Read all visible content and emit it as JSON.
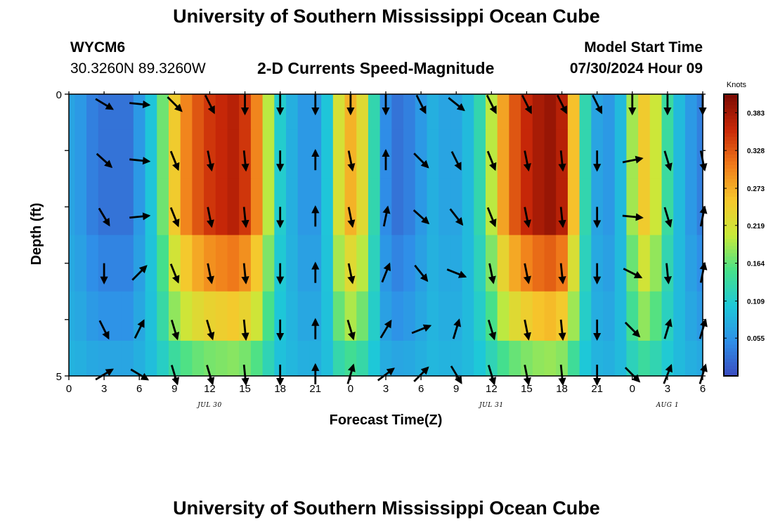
{
  "header": {
    "title": "University of Southern Mississippi Ocean Cube",
    "station": "WYCM6",
    "coords": "30.3260N  89.3260W",
    "subtitle": "2-D Currents Speed-Magnitude",
    "model_start_label": "Model Start Time",
    "model_start_value": "07/30/2024 Hour 09"
  },
  "footer": {
    "title": "University of Southern Mississippi Ocean Cube"
  },
  "colors": {
    "colormap": [
      "#3b4cc0",
      "#2f8fe8",
      "#1ec8d8",
      "#46e08a",
      "#c8ea3a",
      "#f6c72c",
      "#f07a1a",
      "#c82808",
      "#7a0a03"
    ],
    "arrow": "#000000"
  },
  "chart_data": {
    "type": "heatmap",
    "xlabel": "Forecast Time(Z)",
    "ylabel": "Depth (ft)",
    "x_ticks": [
      "0",
      "3",
      "6",
      "9",
      "12",
      "15",
      "18",
      "21",
      "0",
      "3",
      "6",
      "9",
      "12",
      "15",
      "18",
      "21",
      "0",
      "3",
      "6"
    ],
    "x_range_hours": [
      0,
      54
    ],
    "date_labels": [
      {
        "text": "JUL 30",
        "hour": 12
      },
      {
        "text": "JUL 31",
        "hour": 36
      },
      {
        "text": "AUG 1",
        "hour": 51
      }
    ],
    "y_ticks": [
      "0",
      "5"
    ],
    "y_range": [
      0,
      5
    ],
    "colorbar": {
      "unit": "Knots",
      "range": [
        0.0,
        0.41
      ],
      "tick_values": [
        0.383,
        0.328,
        0.273,
        0.219,
        0.164,
        0.109,
        0.055
      ],
      "tick_labels": [
        "0.383",
        "0.328",
        "0.273",
        "0.219",
        "0.164",
        "0.109",
        "0.055"
      ]
    },
    "speed_profile_hours": [
      0,
      1,
      2,
      3,
      4,
      5,
      6,
      7,
      8,
      9,
      10,
      11,
      12,
      13,
      14,
      15,
      16,
      17,
      18,
      19,
      20,
      21,
      22,
      23,
      24,
      25,
      26,
      27,
      28,
      29,
      30,
      31,
      32,
      33,
      34,
      35,
      36,
      37,
      38,
      39,
      40,
      41,
      42,
      43,
      44,
      45,
      46,
      47,
      48,
      49,
      50,
      51,
      52,
      53,
      54
    ],
    "speed_profile_knots": [
      0.07,
      0.06,
      0.04,
      0.03,
      0.03,
      0.03,
      0.06,
      0.1,
      0.17,
      0.25,
      0.3,
      0.33,
      0.35,
      0.36,
      0.37,
      0.35,
      0.3,
      0.2,
      0.11,
      0.08,
      0.06,
      0.06,
      0.1,
      0.22,
      0.27,
      0.23,
      0.13,
      0.05,
      0.03,
      0.04,
      0.06,
      0.08,
      0.07,
      0.07,
      0.09,
      0.13,
      0.2,
      0.28,
      0.33,
      0.36,
      0.38,
      0.39,
      0.37,
      0.26,
      0.13,
      0.07,
      0.06,
      0.09,
      0.19,
      0.25,
      0.21,
      0.14,
      0.09,
      0.06,
      0.04
    ],
    "depth_layers_ft": [
      0.25,
      1.0,
      2.0,
      3.0,
      4.0,
      4.75
    ],
    "depth_scale": [
      1.0,
      1.0,
      1.0,
      0.78,
      0.58,
      0.32
    ],
    "vectors_hours": [
      3,
      6,
      9,
      12,
      15,
      18,
      21,
      24,
      27,
      30,
      33,
      36,
      39,
      42,
      45,
      48,
      51,
      54
    ],
    "vector_rows": [
      {
        "depth": 0.0,
        "dx": [
          1,
          1,
          1,
          0.5,
          0,
          0,
          0,
          0,
          0,
          0.5,
          1,
          0.5,
          0.5,
          0.5,
          0.5,
          0,
          0,
          0
        ],
        "dy": [
          0.6,
          0.1,
          1,
          1,
          1,
          1,
          1,
          1,
          1,
          1,
          0.8,
          1,
          1,
          1,
          1,
          1,
          1,
          1
        ]
      },
      {
        "depth": 1.0,
        "dx": [
          1,
          1,
          0.4,
          0.2,
          0.1,
          0,
          0,
          0.2,
          0,
          0.9,
          0.5,
          0.4,
          0.2,
          0.1,
          0,
          1,
          0.3,
          0.2
        ],
        "dy": [
          0.9,
          0.1,
          1,
          1,
          1,
          1,
          -1,
          1,
          -1,
          0.9,
          1,
          1,
          1,
          1,
          1,
          -0.2,
          1,
          1
        ]
      },
      {
        "depth": 2.0,
        "dx": [
          0.6,
          1,
          0.4,
          0.2,
          0.1,
          0,
          0,
          0.2,
          0.2,
          1,
          0.7,
          0.4,
          0.2,
          0.1,
          0,
          1,
          0.3,
          0.2
        ],
        "dy": [
          1,
          -0.1,
          1,
          1,
          1,
          1,
          -1,
          1,
          -1,
          0.9,
          0.9,
          1,
          1,
          1,
          1,
          0.1,
          1,
          -1
        ]
      },
      {
        "depth": 3.0,
        "dx": [
          0,
          1,
          0.4,
          0.2,
          0.1,
          0,
          0,
          0.2,
          0.4,
          0.8,
          1,
          0.2,
          0.2,
          0.1,
          0,
          1,
          0.1,
          0.2
        ],
        "dy": [
          1,
          -1,
          1,
          1,
          1,
          1,
          -1,
          1,
          -1,
          1,
          0.4,
          1,
          1,
          1,
          1,
          0.5,
          1,
          -1
        ]
      },
      {
        "depth": 4.0,
        "dx": [
          0.5,
          0.5,
          0.3,
          0.3,
          0.1,
          0,
          0,
          0.3,
          0.6,
          1,
          0.3,
          0.3,
          0.2,
          0.1,
          0,
          0.9,
          0.3,
          0.3
        ],
        "dy": [
          1,
          -1,
          1,
          1,
          1,
          1,
          -1,
          1,
          -1,
          -0.4,
          -1,
          1,
          1,
          1,
          1,
          0.9,
          -1,
          -1
        ]
      },
      {
        "depth": 4.8,
        "dx": [
          1,
          1,
          0.3,
          0.3,
          0.1,
          0,
          0,
          0.3,
          0.8,
          0.9,
          0.6,
          0.3,
          0.2,
          0.1,
          0,
          0.9,
          0.4,
          0.3
        ],
        "dy": [
          -0.6,
          0.6,
          1,
          1,
          1,
          1,
          -1,
          -1,
          -0.6,
          -0.9,
          1,
          1,
          1,
          1,
          1,
          0.9,
          -1,
          -1
        ]
      }
    ]
  }
}
